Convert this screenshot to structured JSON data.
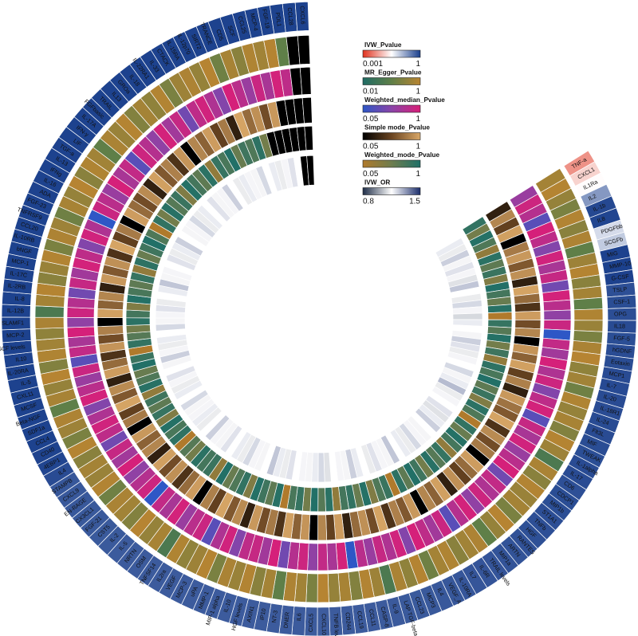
{
  "chart_data": {
    "type": "heatmap",
    "layout": "circular",
    "labels": [
      "TNF-a",
      "CXCL1",
      "IL1Ra",
      "IL2",
      "IL-1b",
      "IL8",
      "PDGFbb",
      "SCGFb",
      "MIG",
      "MMP-10",
      "G-CSF",
      "TSLP",
      "CSF-1",
      "OPG",
      "IL18",
      "FGF-5",
      "hGDNF",
      "Eotaxin",
      "MCP1",
      "IL-7",
      "IL-20",
      "IL-18R1",
      "IL-24",
      "Flt3L",
      "MIF",
      "TWEAK",
      "IL-1alpha",
      "IL-17",
      "CD6",
      "CDCP1",
      "MIP1b",
      "ST1A1",
      "TNFb",
      "HGF",
      "RANTES",
      "ARTN",
      "MIP1a",
      "TRAIL levels",
      "IL-6R",
      "IL7",
      "IL-10RA",
      "VEGF_A",
      "IL4",
      "MCP3",
      "CCL23",
      "LAP TGF-beta-1",
      "IL-9",
      "CASP-8",
      "CCL11",
      "CCL19",
      "CD244",
      "TNFB levels",
      "CXCL10",
      "CXCL5",
      "IL6",
      "DNER",
      "NT-3",
      "IP10",
      "AXIN1",
      "HGF levels",
      "IL-10",
      "MIP-1 alpha",
      "MMP-1",
      "uPA",
      "MCP-3",
      "VEGF",
      "IL2ra",
      "TNFSF14",
      "OSM",
      "NRTN",
      "IL-5",
      "IL-2",
      "CST5",
      "FGF-21",
      "CX3CL1",
      "EN-RAGE",
      "CXCL9",
      "STAMPB",
      "IL4",
      "4EBP1",
      "CD40",
      "CCL4",
      "SDF1a",
      "Beta-NGF",
      "MCSF",
      "CXL11",
      "IL-5",
      "IL-20RA",
      "IL10",
      "SCF levels",
      "MCP-2",
      "SLAMF1",
      "IL-12B",
      "IL-8",
      "IL-2RB",
      "IL-17C",
      "MCP-1",
      "bNGF",
      "IL-10RB",
      "CCL20",
      "TNFRSF9",
      "FGF-23",
      "ADA",
      "IL-16",
      "IFNg",
      "IL-13",
      "TGF-a",
      "LIF",
      "IFN-y",
      "IL-17A",
      "FGFbasic",
      "TRAIL",
      "IL13",
      "GROa",
      "IL-18",
      "IL-22RA1",
      "IL-33",
      "CTACK",
      "IL-15RA",
      "IL-12p70",
      "SIRT2",
      "TRANCE",
      "CD5",
      "SCF",
      "CCL25",
      "MCP-4",
      "FGF-19",
      "PDL1",
      "CCL28",
      "CXCL6"
    ],
    "tracks": [
      {
        "name": "IVW_Pvalue",
        "range": [
          0.001,
          1
        ],
        "colors": [
          "#e0321e",
          "#ffffff",
          "#1a3f8c"
        ]
      },
      {
        "name": "MR_Egger_Pvalue",
        "range": [
          0.01,
          1
        ],
        "colors": [
          "#1f6b64",
          "#5f7f48",
          "#b88431"
        ]
      },
      {
        "name": "Weighted_median_Pvalue",
        "range": [
          0.05,
          1
        ],
        "colors": [
          "#2e57c6",
          "#8a44a8",
          "#d81f78"
        ]
      },
      {
        "name": "Simple mode_Pvalue",
        "range": [
          0.05,
          1
        ],
        "colors": [
          "#000000",
          "#6a4522",
          "#d9a766"
        ]
      },
      {
        "name": "Weighted_mode_Pvalue",
        "range": [
          0.05,
          1
        ],
        "colors": [
          "#b07a2c",
          "#6e7d4e",
          "#1f7068"
        ]
      },
      {
        "name": "IVW_OR",
        "range": [
          0.8,
          1.5
        ],
        "colors": [
          "#1f2e48",
          "#ffffff",
          "#1c2e6c"
        ]
      }
    ],
    "legend": {
      "items": [
        {
          "title": "IVW_Pvalue",
          "min_label": "0.001",
          "max_label": "1"
        },
        {
          "title": "MR_Egger_Pvalue",
          "min_label": "0.01",
          "max_label": "1"
        },
        {
          "title": "Weighted_median_Pvalue",
          "min_label": "0.05",
          "max_label": "1"
        },
        {
          "title": "Simple mode_Pvalue",
          "min_label": "0.05",
          "max_label": "1"
        },
        {
          "title": "Weighted_mode_Pvalue",
          "min_label": "0.05",
          "max_label": "1"
        },
        {
          "title": "IVW_OR",
          "min_label": "0.8",
          "max_label": "1.5"
        }
      ]
    },
    "ivw_pvalue": [
      0.005,
      0.015,
      0.03,
      0.2,
      0.85,
      0.9,
      0.06,
      0.08,
      0.95,
      0.97,
      0.96,
      0.75,
      0.78,
      0.76,
      0.8,
      0.77,
      0.79,
      0.78,
      0.8,
      0.82,
      0.8,
      0.79,
      0.81,
      0.8,
      0.78,
      0.77,
      0.8,
      0.8,
      0.75,
      0.78,
      0.77,
      0.76,
      0.75,
      0.74,
      0.72,
      0.7,
      0.7,
      0.68,
      0.68,
      0.67,
      0.66,
      0.65,
      0.64,
      0.63,
      0.62,
      0.62,
      0.61,
      0.6,
      0.6,
      0.6,
      0.6,
      0.6,
      0.59,
      0.6,
      0.6,
      0.6,
      0.6,
      0.6,
      0.6,
      0.6,
      0.6,
      0.6,
      0.6,
      0.6,
      0.6,
      0.6,
      0.6,
      0.6,
      0.6,
      0.6,
      0.6,
      0.62,
      0.62,
      0.63,
      0.63,
      0.64,
      0.64,
      0.65,
      0.8,
      0.9,
      0.93,
      0.95,
      0.95,
      0.95,
      0.95,
      0.95,
      0.95,
      0.95,
      0.95,
      0.95,
      0.95,
      0.95,
      0.95,
      0.95,
      0.95,
      0.95,
      0.95,
      0.95,
      0.95,
      0.95,
      0.95,
      0.95,
      0.95,
      0.95,
      0.95,
      0.95,
      0.95,
      0.95,
      0.95,
      0.95,
      0.95,
      0.95,
      0.95,
      0.95,
      0.95,
      0.95,
      0.95,
      0.95,
      0.95,
      0.95,
      0.95,
      0.95,
      0.95,
      0.95,
      0.95,
      0.95,
      0.95,
      0.95,
      0.95,
      0.95
    ],
    "mr_egger_pvalue": [
      0.6,
      0.9,
      0.4,
      0.2,
      0.85,
      0.3,
      0.75,
      0.1,
      0.5,
      0.9,
      0.3,
      0.6,
      0.1,
      0.8,
      0.45,
      0.2,
      0.7,
      0.95,
      0.35,
      0.55,
      0.15,
      0.8,
      0.4,
      0.65,
      0.25,
      0.9,
      0.5,
      0.05,
      0.7,
      0.3,
      0.85,
      0.45,
      0.6,
      0.2,
      0.95,
      0.4,
      0.1,
      0.75,
      0.55,
      0.3,
      0.8,
      0.6,
      0.15,
      0.9,
      0.35,
      0.7,
      0.05,
      0.5,
      0.85,
      0.25,
      0.65,
      0.4,
      0.95,
      0.2,
      0.55,
      0.75,
      0.1,
      0.6,
      0.3,
      0.85,
      0.45,
      0.7,
      0.2,
      0.9,
      0.5,
      0.35,
      0.8,
      0.05,
      0.65,
      0.4,
      0.95,
      0.25,
      0.55,
      0.7,
      0.15,
      0.85,
      0.45,
      0.6,
      0.3,
      0.9,
      0.2,
      0.5,
      0.75,
      0.1,
      0.65,
      0.4,
      0.95,
      0.25,
      0.8,
      0.55,
      0.35,
      0.7,
      0.05,
      0.6,
      0.9,
      0.3,
      0.45,
      0.85,
      0.2,
      0.75,
      0.5,
      0.15,
      0.65,
      0.4,
      0.95,
      0.3,
      0.8,
      0.55,
      0.1,
      0.7,
      0.45,
      0.9,
      0.25,
      0.6,
      0.35,
      0.85,
      0.2,
      0.5,
      0.75,
      0.4,
      0.95,
      0.15,
      0.65,
      0.3,
      0.8,
      0.55,
      0.9,
      0.1
    ],
    "weighted_median_pvalue": [
      0.3,
      0.8,
      0.5,
      0.1,
      0.95,
      0.6,
      0.2,
      0.85,
      0.4,
      0.7,
      0.15,
      0.9,
      0.55,
      0.25,
      0.75,
      0.05,
      0.65,
      0.35,
      0.95,
      0.45,
      0.8,
      0.2,
      0.6,
      0.9,
      0.1,
      0.7,
      0.4,
      0.85,
      0.3,
      0.55,
      0.95,
      0.15,
      0.65,
      0.45,
      0.8,
      0.25,
      0.9,
      0.5,
      0.1,
      0.75,
      0.35,
      0.6,
      0.95,
      0.2,
      0.85,
      0.45,
      0.7,
      0.3,
      0.55,
      0.05,
      0.9,
      0.4,
      0.65,
      0.25,
      0.8,
      0.5,
      0.15,
      0.95,
      0.35,
      0.7,
      0.6,
      0.2,
      0.85,
      0.45,
      0.1,
      0.75,
      0.55,
      0.3,
      0.9,
      0.4,
      0.65,
      0.05,
      0.8,
      0.5,
      0.25,
      0.95,
      0.35,
      0.7,
      0.15,
      0.6,
      0.85,
      0.45,
      0.2,
      0.9,
      0.55,
      0.3,
      0.75,
      0.1,
      0.65,
      0.4,
      0.95,
      0.25,
      0.8,
      0.5,
      0.15,
      0.7,
      0.35,
      0.9,
      0.6,
      0.2,
      0.85,
      0.45,
      0.05,
      0.75,
      0.55,
      0.3,
      0.95,
      0.4,
      0.65,
      0.1,
      0.8,
      0.5,
      0.25,
      0.9,
      0.35,
      0.7,
      0.15,
      0.6,
      0.85,
      0.45,
      0.2,
      0.95,
      0.55,
      0.3,
      0.75,
      0.4,
      0.9,
      0.6
    ],
    "simple_mode_pvalue": [
      0.1,
      0.6,
      0.2,
      0.9,
      0.05,
      0.5,
      0.8,
      0.3,
      0.7,
      0.1,
      0.95,
      0.4,
      0.15,
      0.85,
      0.25,
      0.6,
      0.05,
      0.75,
      0.35,
      0.9,
      0.2,
      0.55,
      0.1,
      0.8,
      0.45,
      0.3,
      0.95,
      0.15,
      0.65,
      0.25,
      0.5,
      0.05,
      0.85,
      0.4,
      0.2,
      0.7,
      0.1,
      0.9,
      0.35,
      0.6,
      0.05,
      0.8,
      0.3,
      0.55,
      0.15,
      0.95,
      0.25,
      0.7,
      0.4,
      0.1,
      0.85,
      0.2,
      0.6,
      0.05,
      0.75,
      0.35,
      0.9,
      0.15,
      0.5,
      0.25,
      0.8,
      0.1,
      0.65,
      0.3,
      0.95,
      0.2,
      0.55,
      0.05,
      0.85,
      0.4,
      0.15,
      0.7,
      0.25,
      0.9,
      0.1,
      0.6,
      0.35,
      0.8,
      0.05,
      0.5,
      0.2,
      0.95,
      0.3,
      0.65,
      0.1,
      0.85,
      0.4,
      0.15,
      0.75,
      0.25,
      0.55,
      0.05,
      0.9,
      0.35,
      0.6,
      0.1,
      0.8,
      0.3,
      0.7,
      0.15,
      0.95,
      0.2,
      0.5,
      0.05,
      0.85,
      0.4,
      0.25,
      0.65,
      0.1,
      0.9,
      0.3,
      0.55,
      0.15,
      0.75,
      0.05,
      0.6,
      0.35,
      0.85,
      0.2,
      0.5,
      0.1,
      0.95,
      0.4,
      0.7,
      0.25,
      0.8
    ],
    "weighted_mode_pvalue": [
      0.7,
      0.2,
      0.9,
      0.4,
      0.1,
      0.8,
      0.3,
      0.6,
      0.15,
      0.95,
      0.5,
      0.25,
      0.85,
      0.05,
      0.65,
      0.35,
      0.9,
      0.2,
      0.55,
      0.1,
      0.75,
      0.45,
      0.95,
      0.3,
      0.6,
      0.15,
      0.8,
      0.4,
      0.05,
      0.7,
      0.25,
      0.9,
      0.5,
      0.1,
      0.65,
      0.35,
      0.85,
      0.2,
      0.55,
      0.95,
      0.3,
      0.75,
      0.05,
      0.6,
      0.4,
      0.15,
      0.9,
      0.25,
      0.7,
      0.5,
      0.1,
      0.8,
      0.35,
      0.95,
      0.2,
      0.65,
      0.45,
      0.05,
      0.85,
      0.3,
      0.55,
      0.9,
      0.15,
      0.7,
      0.4,
      0.25,
      0.95,
      0.1,
      0.6,
      0.5,
      0.8,
      0.2,
      0.35,
      0.05,
      0.75,
      0.45,
      0.9,
      0.15,
      0.65,
      0.3,
      0.55,
      0.1,
      0.85,
      0.4,
      0.25,
      0.95,
      0.6,
      0.05,
      0.7,
      0.35,
      0.2,
      0.8,
      0.5,
      0.15,
      0.9,
      0.45,
      0.3,
      0.65,
      0.1,
      0.75,
      0.25,
      0.55,
      0.95,
      0.4,
      0.05,
      0.7,
      0.2,
      0.85,
      0.35,
      0.6,
      0.15,
      0.9,
      0.5,
      0.3,
      0.8,
      0.1,
      0.65,
      0.45,
      0.95,
      0.25,
      0.55,
      0.4,
      0.75,
      0.2
    ],
    "ivw_or": [
      1.0,
      1.02,
      0.98,
      1.05,
      0.99,
      1.03,
      1.01,
      0.97,
      1.06,
      1.0,
      0.98,
      1.04,
      1.01,
      0.96,
      1.02,
      1.0,
      0.99,
      1.05,
      1.03,
      0.98,
      1.01,
      1.0,
      1.04,
      0.99,
      1.02,
      1.07,
      0.98,
      1.01,
      1.0,
      1.03,
      0.97,
      1.02,
      1.05,
      1.0,
      0.99,
      1.01,
      1.04,
      0.98,
      1.02,
      1.0,
      1.06,
      0.99,
      1.01,
      1.03,
      0.98,
      1.0,
      1.02,
      1.05,
      0.99,
      1.01,
      1.0,
      0.97,
      1.04,
      1.02,
      0.99,
      1.01,
      1.0,
      1.03,
      0.98,
      1.02,
      1.06,
      1.0,
      0.99,
      1.01,
      1.04,
      0.98,
      1.02,
      1.0,
      1.03,
      0.99,
      1.01,
      1.05,
      1.0,
      0.98,
      1.02,
      1.01,
      0.99,
      1.04,
      1.0,
      1.02,
      0.98,
      1.01,
      1.03,
      1.0,
      0.99,
      1.05,
      1.01,
      0.98,
      1.02,
      1.0,
      1.04,
      0.99,
      1.01,
      1.03,
      0.98,
      1.0,
      1.02,
      1.06,
      0.99,
      1.01,
      1.0,
      1.03,
      0.98,
      1.02,
      1.05,
      1.0,
      0.99,
      1.01,
      1.04,
      0.98,
      1.02,
      1.0,
      1.03,
      0.99,
      1.01,
      1.05,
      1.0,
      0.98,
      1.02,
      1.01,
      0.99,
      1.04,
      1.0,
      1.02,
      0.98,
      1.01,
      1.03,
      1.0
    ]
  }
}
